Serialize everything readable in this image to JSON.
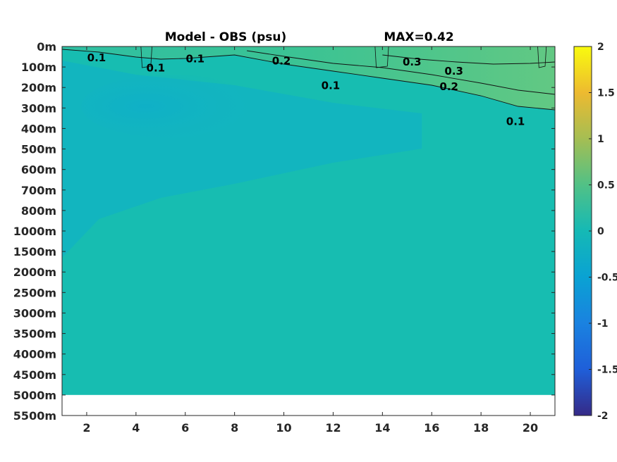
{
  "chart_data": {
    "type": "heatmap",
    "title": "Model - OBS (psu)",
    "subtitle": "MAX=0.42",
    "x": {
      "range": [
        1,
        21
      ],
      "ticks": [
        2,
        4,
        6,
        8,
        10,
        12,
        14,
        16,
        18,
        20
      ]
    },
    "y": {
      "levels": [
        "0m",
        "100m",
        "200m",
        "300m",
        "400m",
        "500m",
        "600m",
        "700m",
        "800m",
        "1000m",
        "1500m",
        "2000m",
        "2500m",
        "3000m",
        "3500m",
        "4000m",
        "4500m",
        "5000m",
        "5500m"
      ],
      "reversed": true,
      "data_bottom_level": "5000m"
    },
    "colorbar": {
      "range": [
        -2,
        2
      ],
      "ticks": [
        "2",
        "1.5",
        "1",
        "0.5",
        "0",
        "-0.5",
        "-1",
        "-1.5",
        "-2"
      ],
      "colormap": "parula"
    },
    "contours": [
      {
        "level": 0.1,
        "label": "0.1",
        "points": [
          [
            1.0,
            4
          ],
          [
            2.5,
            8
          ],
          [
            4.0,
            15
          ],
          [
            5.0,
            18
          ],
          [
            6.0,
            17
          ],
          [
            8.0,
            12
          ],
          [
            10.0,
            25
          ],
          [
            12.0,
            35
          ],
          [
            14.0,
            45
          ],
          [
            16.0,
            55
          ],
          [
            18.0,
            70
          ],
          [
            19.5,
            85
          ],
          [
            21.0,
            90
          ]
        ]
      },
      {
        "level": 0.2,
        "label": "0.2",
        "points": [
          [
            8.5,
            6
          ],
          [
            10.0,
            14
          ],
          [
            12.0,
            24
          ],
          [
            14.0,
            30
          ],
          [
            16.0,
            40
          ],
          [
            18.0,
            52
          ],
          [
            19.5,
            62
          ],
          [
            21.0,
            68
          ]
        ]
      },
      {
        "level": 0.3,
        "label": "0.3",
        "points": [
          [
            14.0,
            12
          ],
          [
            15.5,
            18
          ],
          [
            17.0,
            22
          ],
          [
            18.5,
            25
          ],
          [
            20.0,
            24
          ],
          [
            21.0,
            22
          ]
        ]
      }
    ],
    "contour_labels": [
      {
        "text": "0.1",
        "x": 2.4,
        "depth_index": 0.55
      },
      {
        "text": "0.1",
        "x": 4.8,
        "depth_index": 1.05
      },
      {
        "text": "0.1",
        "x": 6.4,
        "depth_index": 0.6
      },
      {
        "text": "0.2",
        "x": 9.9,
        "depth_index": 0.7
      },
      {
        "text": "0.3",
        "x": 15.2,
        "depth_index": 0.75
      },
      {
        "text": "0.3",
        "x": 16.9,
        "depth_index": 1.2
      },
      {
        "text": "0.1",
        "x": 11.9,
        "depth_index": 1.9
      },
      {
        "text": "0.2",
        "x": 16.7,
        "depth_index": 1.95
      },
      {
        "text": "0.1",
        "x": 19.4,
        "depth_index": 3.65
      }
    ],
    "colors": {
      "background": "#17bdb1",
      "cool_patch": "#12b4c2",
      "warm_top": "#3fc48f",
      "warm_corner": "#6cc97b",
      "nodata": "#ffffff"
    },
    "grid": false
  }
}
